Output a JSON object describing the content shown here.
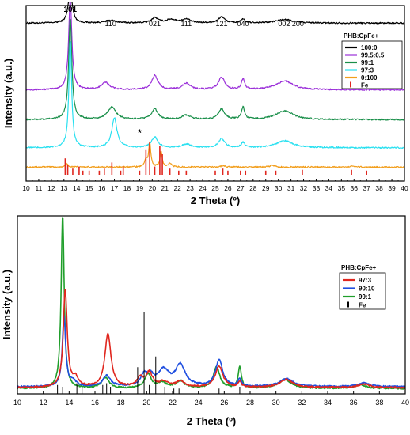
{
  "chart_data": [
    {
      "type": "line",
      "xlabel": "2 Theta (º)",
      "ylabel": "Intensity (a.u.)",
      "xlim": [
        10,
        40
      ],
      "xticks": [
        10,
        11,
        12,
        13,
        14,
        15,
        16,
        17,
        18,
        19,
        20,
        21,
        22,
        23,
        24,
        25,
        26,
        27,
        28,
        29,
        30,
        31,
        32,
        33,
        34,
        35,
        36,
        37,
        38,
        39,
        40
      ],
      "grid": false,
      "legend_position": "top-right",
      "legend_title": "PHB:CpFe+",
      "peak_annotations": [
        {
          "label": "101",
          "x": 13.5
        },
        {
          "label": "110",
          "x": 16.7
        },
        {
          "label": "021",
          "x": 20.2
        },
        {
          "label": "111",
          "x": 22.7
        },
        {
          "label": "121",
          "x": 25.5
        },
        {
          "label": "040",
          "x": 27.2
        },
        {
          "label": "002 200",
          "x": 30.5
        }
      ],
      "marker_annotation": {
        "label": "*",
        "x": 19.0
      },
      "series": [
        {
          "name": "100:0",
          "color": "#000000",
          "baseline": 0.9,
          "peaks": [
            [
              13.5,
              0.2,
              0.18
            ],
            [
              16.7,
              0.015,
              0.5
            ],
            [
              20.2,
              0.03,
              0.3
            ],
            [
              21.5,
              0.02,
              0.5
            ],
            [
              22.7,
              0.02,
              0.4
            ],
            [
              25.5,
              0.035,
              0.3
            ],
            [
              27.2,
              0.02,
              0.2
            ],
            [
              30.5,
              0.02,
              0.8
            ]
          ]
        },
        {
          "name": "99.5:0.5",
          "color": "#9b30d9",
          "baseline": 0.52,
          "peaks": [
            [
              13.5,
              0.52,
              0.15
            ],
            [
              16.3,
              0.04,
              0.4
            ],
            [
              20.2,
              0.08,
              0.3
            ],
            [
              22.7,
              0.035,
              0.4
            ],
            [
              25.5,
              0.07,
              0.3
            ],
            [
              27.2,
              0.06,
              0.15
            ],
            [
              30.5,
              0.05,
              0.8
            ]
          ]
        },
        {
          "name": "99:1",
          "color": "#1a8f4a",
          "baseline": 0.35,
          "peaks": [
            [
              13.5,
              0.58,
              0.15
            ],
            [
              16.8,
              0.07,
              0.4
            ],
            [
              20.2,
              0.06,
              0.3
            ],
            [
              22.7,
              0.025,
              0.4
            ],
            [
              25.5,
              0.06,
              0.3
            ],
            [
              27.2,
              0.07,
              0.15
            ],
            [
              30.5,
              0.05,
              0.8
            ]
          ]
        },
        {
          "name": "97:3",
          "color": "#29e0f0",
          "baseline": 0.19,
          "peaks": [
            [
              13.5,
              0.62,
              0.13
            ],
            [
              17.0,
              0.17,
              0.25
            ],
            [
              20.2,
              0.06,
              0.3
            ],
            [
              22.7,
              0.02,
              0.4
            ],
            [
              25.5,
              0.05,
              0.3
            ],
            [
              27.2,
              0.03,
              0.15
            ],
            [
              30.5,
              0.04,
              0.8
            ]
          ]
        },
        {
          "name": "0:100",
          "color": "#f29e1c",
          "baseline": 0.08,
          "peaks": [
            [
              13.2,
              0.02,
              0.15
            ],
            [
              19.5,
              0.04,
              0.12
            ],
            [
              19.8,
              0.14,
              0.1
            ],
            [
              20.7,
              0.09,
              0.1
            ],
            [
              21.4,
              0.02,
              0.15
            ],
            [
              25.6,
              0.01,
              0.15
            ],
            [
              29.5,
              0.01,
              0.2
            ],
            [
              35.9,
              0.008,
              0.2
            ]
          ]
        }
      ],
      "reference": {
        "name": "Fe",
        "color": "#e0261e",
        "sticks": [
          [
            13.1,
            0.04
          ],
          [
            13.3,
            0.025
          ],
          [
            13.7,
            0.015
          ],
          [
            14.2,
            0.02
          ],
          [
            14.5,
            0.01
          ],
          [
            15.0,
            0.01
          ],
          [
            15.8,
            0.01
          ],
          [
            16.2,
            0.015
          ],
          [
            16.8,
            0.03
          ],
          [
            17.5,
            0.01
          ],
          [
            17.7,
            0.02
          ],
          [
            19.0,
            0.01
          ],
          [
            19.5,
            0.06
          ],
          [
            19.8,
            0.08
          ],
          [
            20.2,
            0.02
          ],
          [
            20.6,
            0.07
          ],
          [
            20.8,
            0.05
          ],
          [
            21.4,
            0.015
          ],
          [
            22.1,
            0.01
          ],
          [
            22.7,
            0.01
          ],
          [
            25.0,
            0.01
          ],
          [
            25.6,
            0.015
          ],
          [
            26.0,
            0.01
          ],
          [
            27.0,
            0.01
          ],
          [
            27.4,
            0.01
          ],
          [
            29.0,
            0.01
          ],
          [
            29.8,
            0.01
          ],
          [
            31.9,
            0.012
          ],
          [
            35.8,
            0.012
          ],
          [
            37.0,
            0.01
          ]
        ]
      }
    },
    {
      "type": "line",
      "xlabel": "2 Theta (º)",
      "ylabel": "Intensity (a.u.)",
      "xlim": [
        10,
        40
      ],
      "xticks": [
        10,
        12,
        14,
        16,
        18,
        20,
        22,
        24,
        26,
        28,
        30,
        32,
        34,
        36,
        38,
        40
      ],
      "grid": false,
      "legend_position": "right",
      "legend_title": "PHB:CpFe+",
      "series": [
        {
          "name": "97:3",
          "color": "#e0261e",
          "baseline": 0.035,
          "peaks": [
            [
              13.7,
              0.55,
              0.18
            ],
            [
              14.5,
              0.05,
              0.25
            ],
            [
              17.0,
              0.3,
              0.28
            ],
            [
              19.5,
              0.05,
              0.3
            ],
            [
              20.2,
              0.08,
              0.3
            ],
            [
              21.3,
              0.03,
              0.4
            ],
            [
              22.6,
              0.035,
              0.4
            ],
            [
              25.6,
              0.12,
              0.35
            ],
            [
              27.2,
              0.03,
              0.15
            ],
            [
              30.8,
              0.045,
              0.6
            ],
            [
              36.8,
              0.02,
              0.5
            ]
          ]
        },
        {
          "name": "90:10",
          "color": "#1f4fe0",
          "baseline": 0.04,
          "peaks": [
            [
              13.6,
              0.4,
              0.15
            ],
            [
              14.3,
              0.03,
              0.3
            ],
            [
              16.9,
              0.06,
              0.35
            ],
            [
              19.8,
              0.06,
              0.3
            ],
            [
              20.3,
              0.05,
              0.3
            ],
            [
              21.3,
              0.09,
              0.5
            ],
            [
              22.6,
              0.12,
              0.45
            ],
            [
              25.6,
              0.15,
              0.32
            ],
            [
              27.2,
              0.04,
              0.15
            ],
            [
              30.8,
              0.045,
              0.6
            ],
            [
              36.8,
              0.02,
              0.5
            ]
          ]
        },
        {
          "name": "99:1",
          "color": "#1f9e2a",
          "baseline": 0.03,
          "peaks": [
            [
              13.5,
              0.98,
              0.14
            ],
            [
              16.8,
              0.06,
              0.35
            ],
            [
              20.1,
              0.08,
              0.3
            ],
            [
              21.2,
              0.03,
              0.4
            ],
            [
              22.6,
              0.04,
              0.4
            ],
            [
              25.4,
              0.12,
              0.3
            ],
            [
              27.2,
              0.12,
              0.15
            ],
            [
              30.7,
              0.05,
              0.6
            ],
            [
              36.5,
              0.02,
              0.5
            ]
          ]
        }
      ],
      "reference": {
        "name": "Fe",
        "color": "#000000",
        "sticks": [
          [
            13.1,
            0.05
          ],
          [
            13.5,
            0.04
          ],
          [
            14.6,
            0.06
          ],
          [
            15.0,
            0.04
          ],
          [
            16.6,
            0.05
          ],
          [
            16.9,
            0.06
          ],
          [
            17.2,
            0.04
          ],
          [
            19.3,
            0.15
          ],
          [
            19.8,
            0.46
          ],
          [
            20.2,
            0.05
          ],
          [
            20.7,
            0.21
          ],
          [
            21.4,
            0.04
          ],
          [
            22.1,
            0.03
          ],
          [
            22.5,
            0.03
          ],
          [
            25.6,
            0.03
          ],
          [
            27.2,
            0.04
          ]
        ]
      }
    }
  ]
}
